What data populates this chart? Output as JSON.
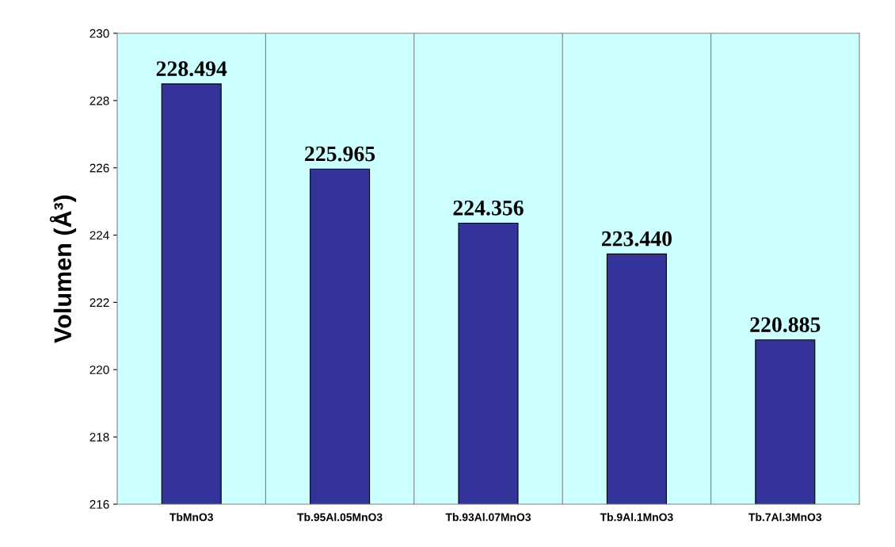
{
  "chart_data": {
    "type": "bar",
    "ylabel": "Volumen (Å³)",
    "categories": [
      "TbMnO3",
      "Tb.95Al.05MnO3",
      "Tb.93Al.07MnO3",
      "Tb.9Al.1MnO3",
      "Tb.7Al.3MnO3"
    ],
    "values": [
      228.494,
      225.965,
      224.356,
      223.44,
      220.885
    ],
    "value_labels": [
      "228.494",
      "225.965",
      "224.356",
      "223.440",
      "220.885"
    ],
    "color": "#333399",
    "ylim": [
      216,
      230
    ],
    "yticks": [
      216,
      218,
      220,
      222,
      224,
      226,
      228,
      230
    ],
    "grid": "x",
    "legend": false
  }
}
